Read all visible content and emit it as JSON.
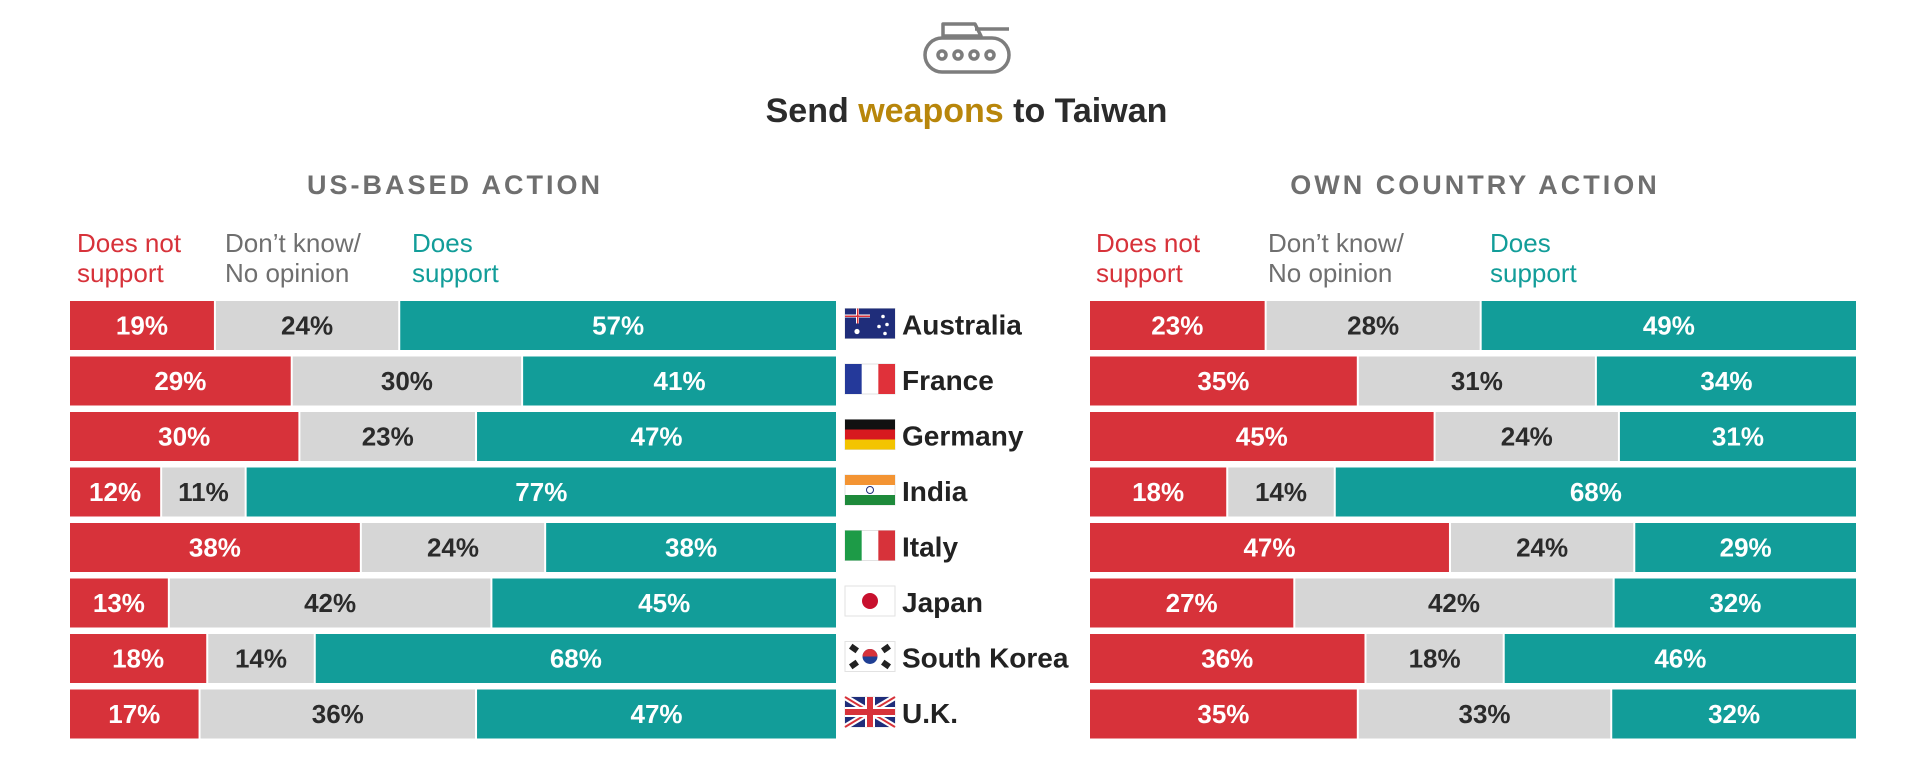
{
  "title": {
    "prefix": "Send ",
    "highlight": "weapons",
    "suffix": " to Taiwan"
  },
  "icon": "tank-icon",
  "colors": {
    "not_support": "#d7323a",
    "dont_know": "#d6d6d6",
    "support": "#129d99",
    "highlight": "#b8860b"
  },
  "legend": {
    "not_support": [
      "Does not",
      "support"
    ],
    "dont_know": [
      "Don’t know/",
      "No opinion"
    ],
    "support": [
      "Does",
      "support"
    ]
  },
  "chart_data": [
    {
      "type": "bar",
      "stacked": true,
      "orientation": "horizontal",
      "title": "US-BASED ACTION",
      "categories": [
        "Australia",
        "France",
        "Germany",
        "India",
        "Italy",
        "Japan",
        "South Korea",
        "U.K."
      ],
      "series": [
        {
          "name": "Does not support",
          "values": [
            19,
            29,
            30,
            12,
            38,
            13,
            18,
            17
          ]
        },
        {
          "name": "Don’t know/No opinion",
          "values": [
            24,
            30,
            23,
            11,
            24,
            42,
            14,
            36
          ]
        },
        {
          "name": "Does support",
          "values": [
            57,
            41,
            47,
            77,
            38,
            45,
            68,
            47
          ]
        }
      ],
      "unit": "%"
    },
    {
      "type": "bar",
      "stacked": true,
      "orientation": "horizontal",
      "title": "OWN COUNTRY ACTION",
      "categories": [
        "Australia",
        "France",
        "Germany",
        "India",
        "Italy",
        "Japan",
        "South Korea",
        "U.K."
      ],
      "series": [
        {
          "name": "Does not support",
          "values": [
            23,
            35,
            45,
            18,
            47,
            27,
            36,
            35
          ]
        },
        {
          "name": "Don’t know/No opinion",
          "values": [
            28,
            31,
            24,
            14,
            24,
            42,
            18,
            33
          ]
        },
        {
          "name": "Does support",
          "values": [
            49,
            34,
            31,
            68,
            29,
            32,
            46,
            32
          ]
        }
      ],
      "unit": "%"
    }
  ],
  "flags": [
    "australia-flag-icon",
    "france-flag-icon",
    "germany-flag-icon",
    "india-flag-icon",
    "italy-flag-icon",
    "japan-flag-icon",
    "south-korea-flag-icon",
    "uk-flag-icon"
  ]
}
